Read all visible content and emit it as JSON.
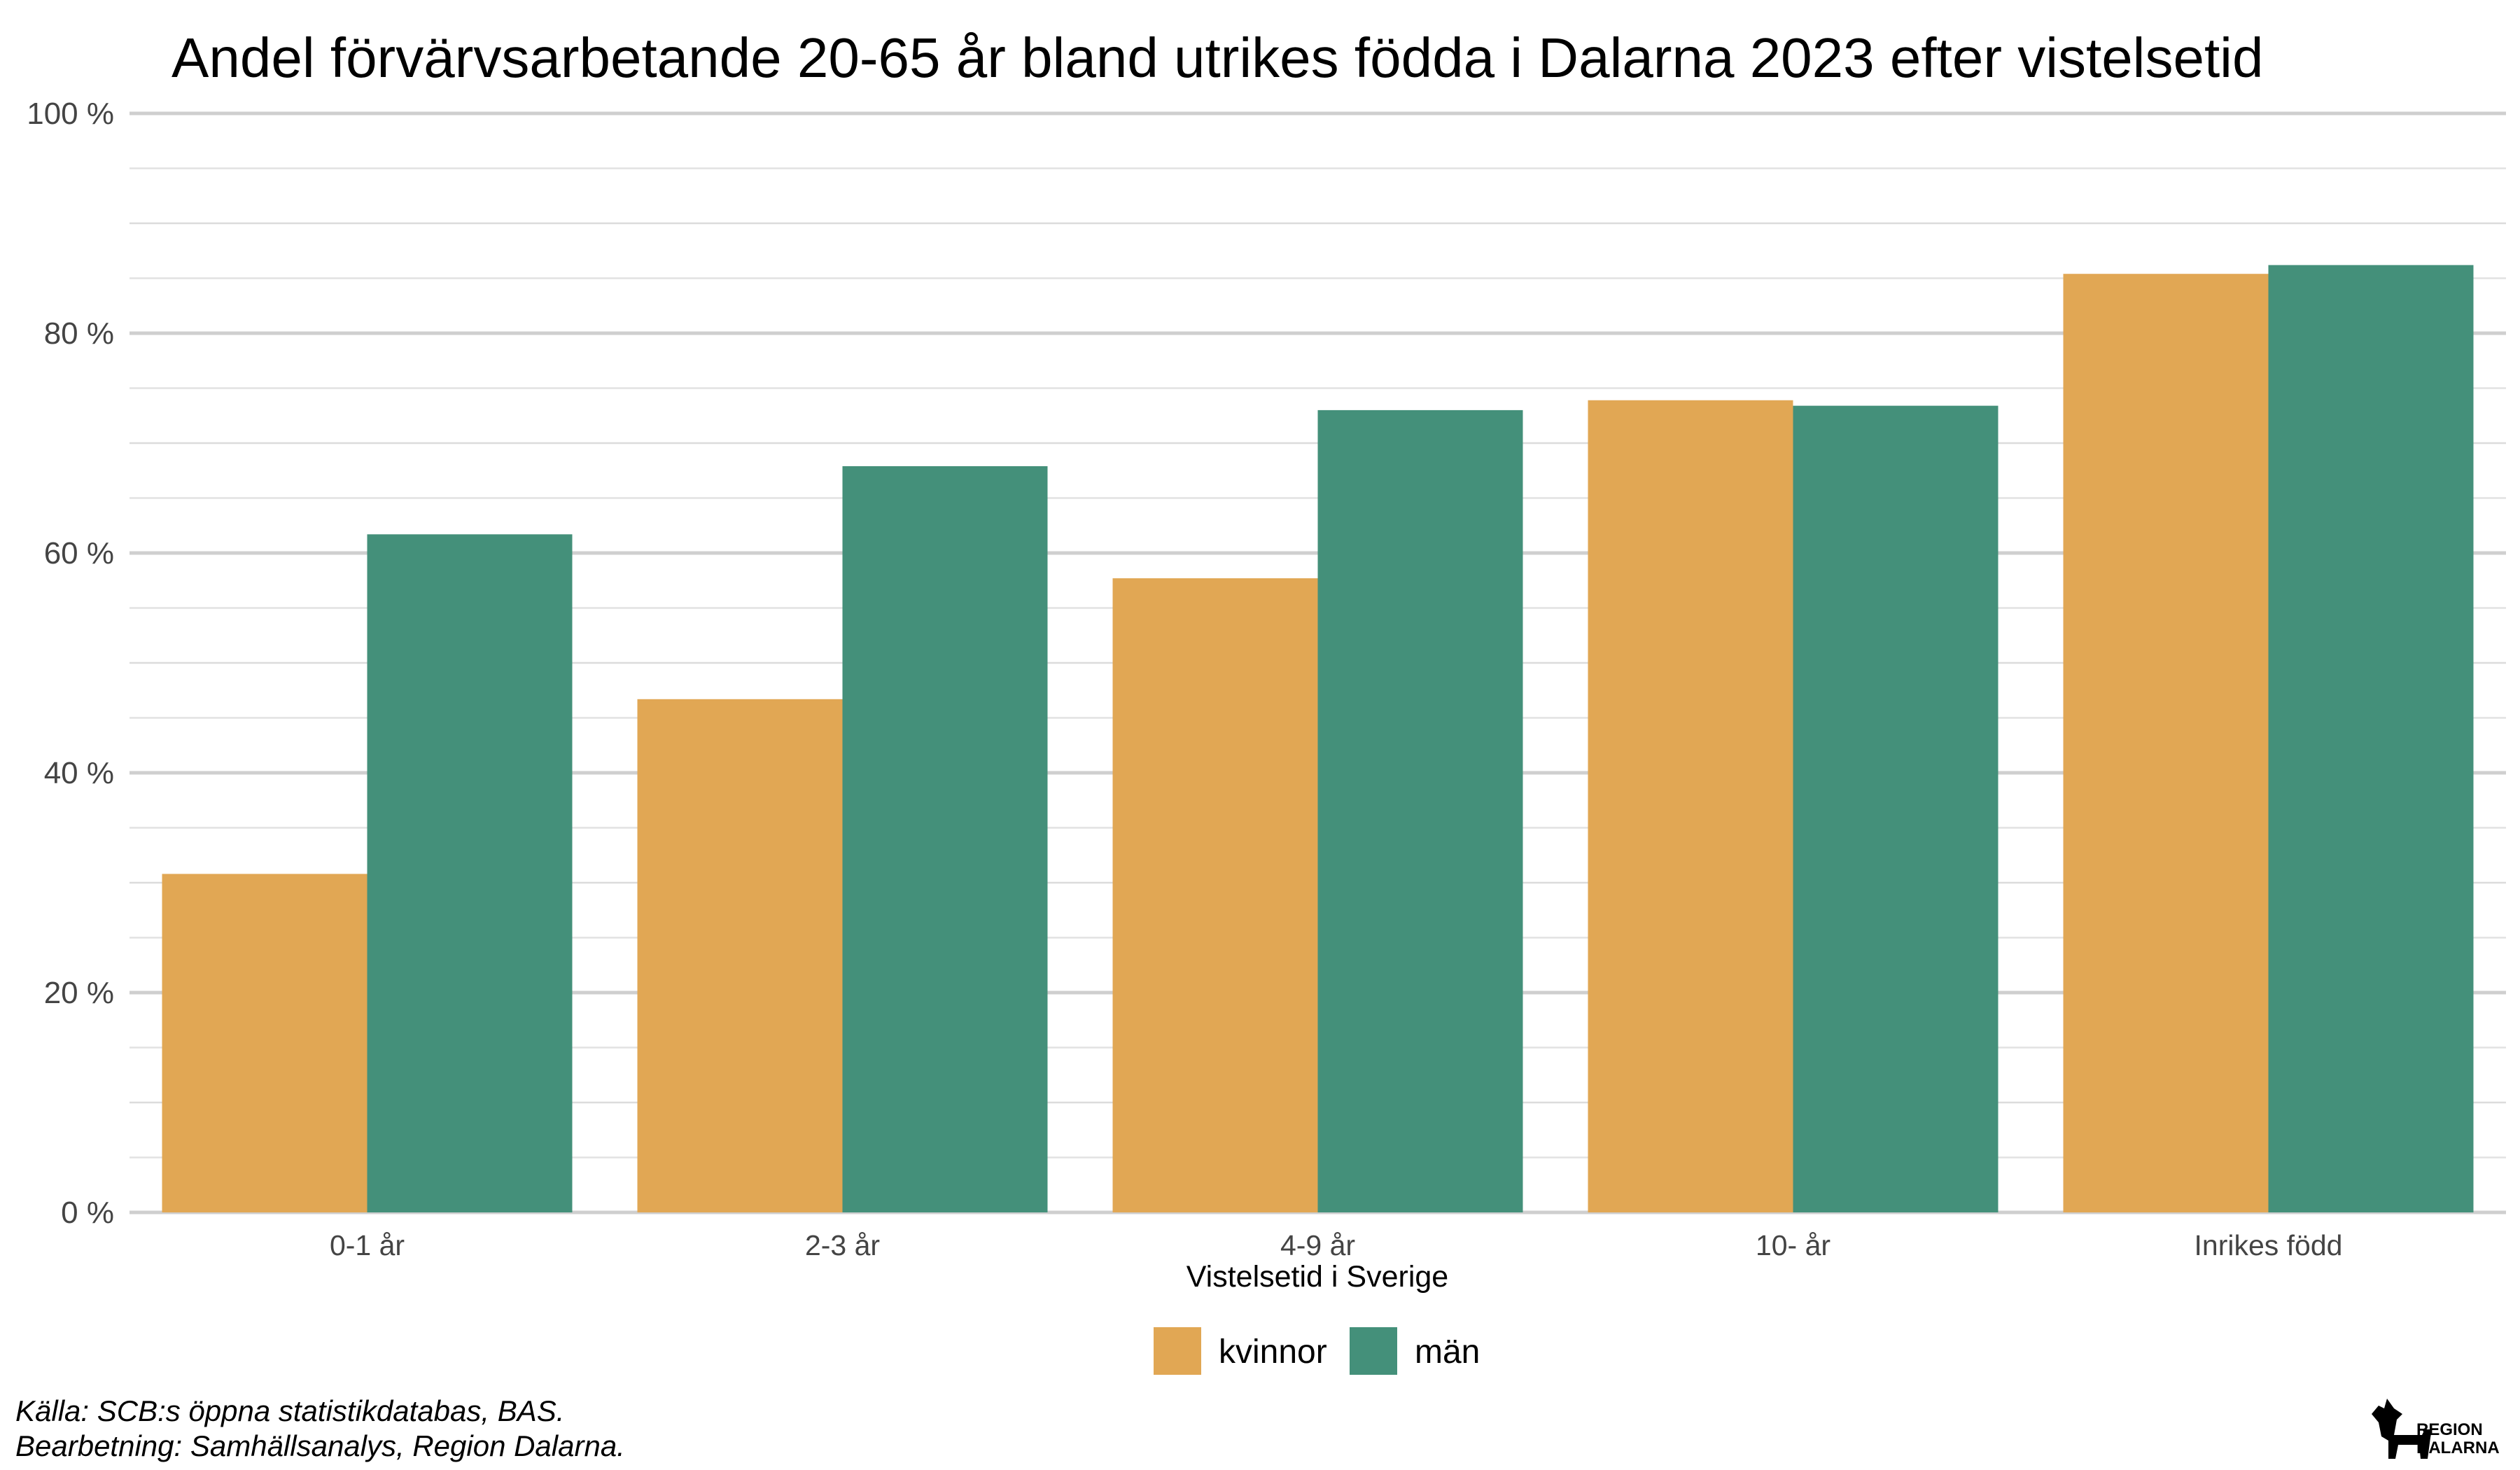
{
  "chart_data": {
    "type": "bar",
    "title": "Andel förvärvsarbetande 20-65 år bland utrikes födda i Dalarna 2023 efter vistelsetid",
    "xlabel": "Vistelsetid i Sverige",
    "ylabel": "",
    "categories": [
      "0-1 år",
      "2-3 år",
      "4-9 år",
      "10- år",
      "Inrikes född"
    ],
    "series": [
      {
        "name": "kvinnor",
        "color": "#E1A754",
        "values": [
          30.8,
          46.7,
          57.7,
          73.9,
          85.4
        ]
      },
      {
        "name": "män",
        "color": "#44907A",
        "values": [
          61.7,
          67.9,
          73.0,
          73.4,
          86.2
        ]
      }
    ],
    "ylim": [
      0,
      100
    ],
    "yticks": [
      0,
      20,
      40,
      60,
      80,
      100
    ],
    "ytick_labels": [
      "0 %",
      "20 %",
      "40 %",
      "60 %",
      "80 %",
      "100 %"
    ],
    "grid": true,
    "legend_position": "bottom"
  },
  "caption": {
    "line1": "Källa: SCB:s öppna statistikdatabas, BAS.",
    "line2": "Bearbetning: Samhällsanalys, Region Dalarna."
  },
  "logo": {
    "line1": "REGION",
    "line2": "DALARNA"
  }
}
